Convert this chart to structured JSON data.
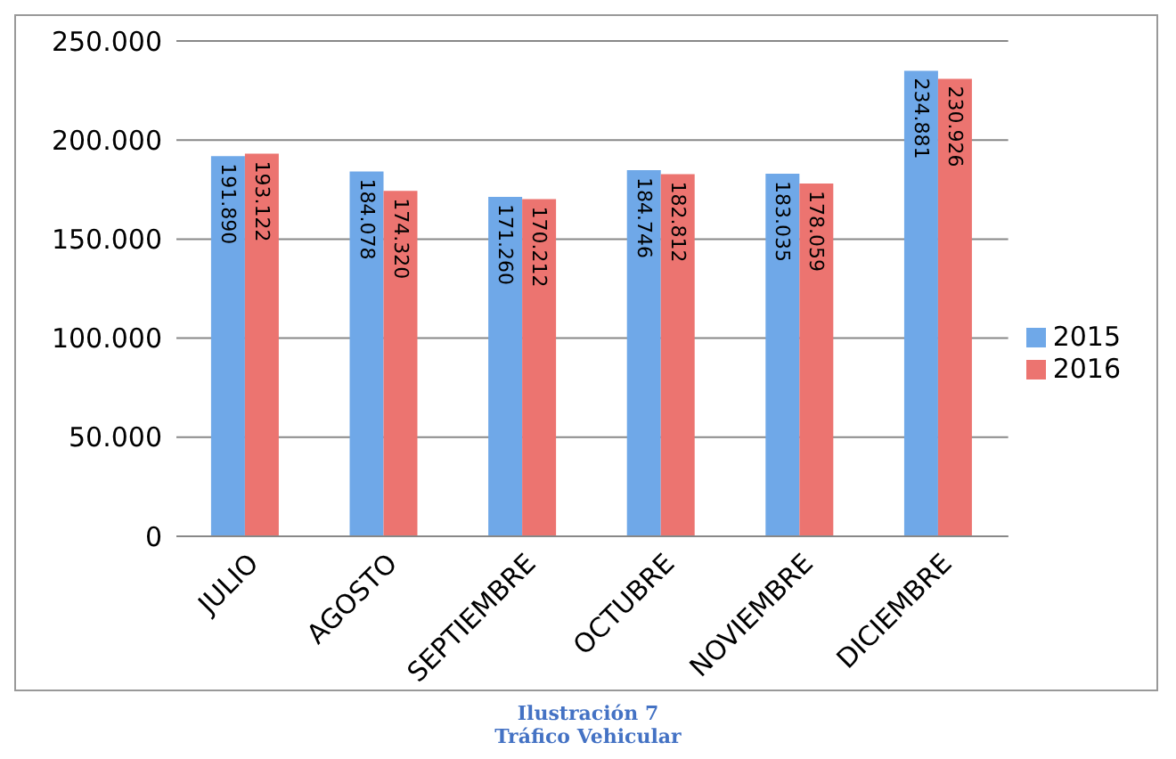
{
  "chart_data": {
    "type": "bar",
    "categories": [
      "JULIO",
      "AGOSTO",
      "SEPTIEMBRE",
      "OCTUBRE",
      "NOVIEMBRE",
      "DICIEMBRE"
    ],
    "series": [
      {
        "name": "2015",
        "color": "#6fa8e8",
        "values": [
          191890,
          184078,
          171260,
          184746,
          183035,
          234881
        ],
        "value_labels": [
          "191.890",
          "184.078",
          "171.260",
          "184.746",
          "183.035",
          "234.881"
        ]
      },
      {
        "name": "2016",
        "color": "#ec7470",
        "values": [
          193122,
          174320,
          170212,
          182812,
          178059,
          230926
        ],
        "value_labels": [
          "193.122",
          "174.320",
          "170.212",
          "182.812",
          "178.059",
          "230.926"
        ]
      }
    ],
    "ylim": [
      0,
      250000
    ],
    "yticks": [
      {
        "value": 0,
        "label": "0"
      },
      {
        "value": 50000,
        "label": "50.000"
      },
      {
        "value": 100000,
        "label": "100.000"
      },
      {
        "value": 150000,
        "label": "150.000"
      },
      {
        "value": 200000,
        "label": "200.000"
      },
      {
        "value": 250000,
        "label": "250.000"
      }
    ],
    "grid": "y",
    "legend": "right",
    "annotations": [
      "Ilustración 7",
      "Tráfico Vehicular"
    ]
  }
}
